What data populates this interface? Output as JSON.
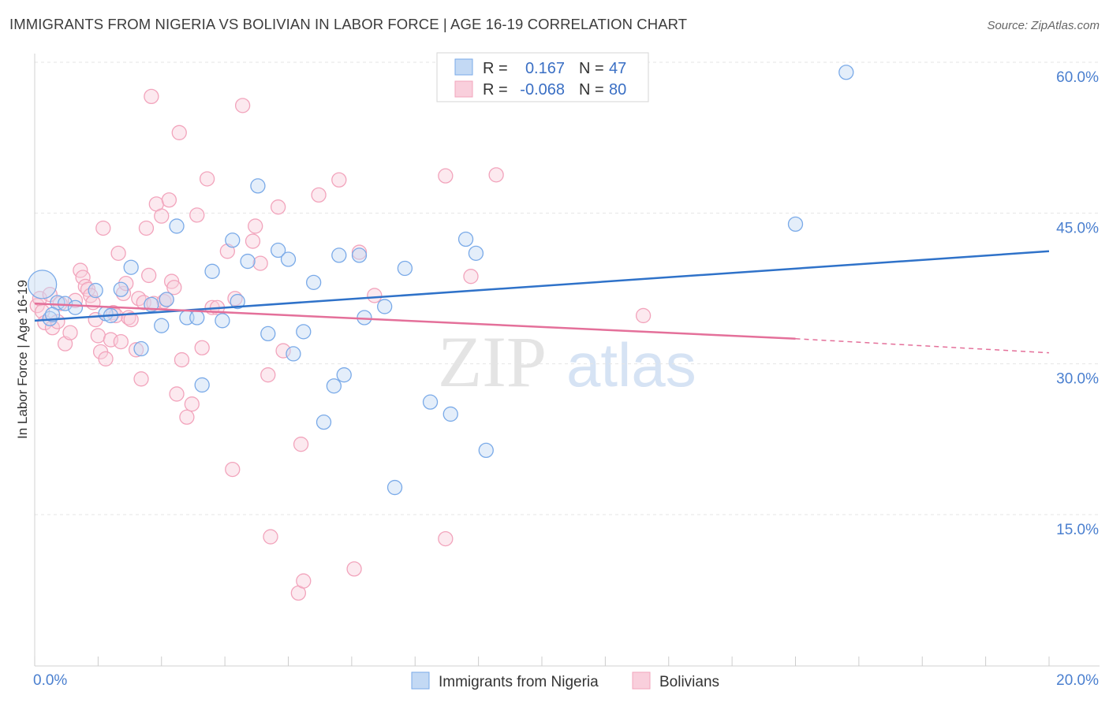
{
  "header": {
    "title": "IMMIGRANTS FROM NIGERIA VS BOLIVIAN IN LABOR FORCE | AGE 16-19 CORRELATION CHART",
    "source": "Source: ZipAtlas.com"
  },
  "watermark": {
    "zip": "ZIP",
    "atlas": "atlas"
  },
  "legend": {
    "rows": [
      {
        "r_label": "R =",
        "r_value": "0.167",
        "n_label": "N =",
        "n_value": "47"
      },
      {
        "r_label": "R =",
        "r_value": "-0.068",
        "n_label": "N =",
        "n_value": "80"
      }
    ]
  },
  "chart_data": {
    "type": "scatter",
    "title": "IMMIGRANTS FROM NIGERIA VS BOLIVIAN IN LABOR FORCE | AGE 16-19 CORRELATION CHART",
    "xlabel": "",
    "ylabel": "In Labor Force | Age 16-19",
    "xlim": [
      0,
      20
    ],
    "ylim": [
      0,
      62
    ],
    "x_tick_labels": [
      "0.0%",
      "20.0%"
    ],
    "y_ticks": [
      15,
      30,
      45,
      60
    ],
    "y_tick_labels": [
      "15.0%",
      "30.0%",
      "45.0%",
      "60.0%"
    ],
    "grid": true,
    "legend_position": "top-center",
    "colors": {
      "nigeria": "#7aaae8",
      "bolivians": "#f2a4bc",
      "nigeria_line": "#2f72c9",
      "bolivians_line": "#e4709a"
    },
    "series": [
      {
        "name": "Immigrants from Nigeria",
        "r": 0.167,
        "n": 47,
        "trend": {
          "x0": 0,
          "y0": 34.3,
          "x1": 20,
          "y1": 41.2
        },
        "points": [
          [
            0.15,
            37.9
          ],
          [
            0.3,
            34.5
          ],
          [
            0.45,
            36.1
          ],
          [
            0.6,
            36.0
          ],
          [
            0.8,
            35.6
          ],
          [
            1.2,
            37.3
          ],
          [
            1.4,
            35.0
          ],
          [
            1.5,
            34.8
          ],
          [
            1.7,
            37.4
          ],
          [
            1.9,
            39.6
          ],
          [
            2.1,
            31.5
          ],
          [
            2.3,
            35.9
          ],
          [
            2.5,
            33.8
          ],
          [
            2.6,
            36.4
          ],
          [
            2.8,
            43.7
          ],
          [
            3.0,
            34.6
          ],
          [
            3.2,
            34.6
          ],
          [
            3.3,
            27.9
          ],
          [
            3.5,
            39.2
          ],
          [
            3.7,
            34.3
          ],
          [
            3.9,
            42.3
          ],
          [
            4.0,
            36.2
          ],
          [
            4.2,
            40.2
          ],
          [
            4.4,
            47.7
          ],
          [
            4.6,
            33.0
          ],
          [
            4.8,
            41.3
          ],
          [
            5.0,
            40.4
          ],
          [
            5.1,
            31.0
          ],
          [
            5.3,
            33.2
          ],
          [
            5.5,
            38.1
          ],
          [
            5.7,
            24.2
          ],
          [
            5.9,
            27.8
          ],
          [
            6.0,
            40.8
          ],
          [
            6.1,
            28.9
          ],
          [
            6.4,
            40.8
          ],
          [
            6.5,
            34.6
          ],
          [
            6.9,
            35.7
          ],
          [
            7.1,
            17.7
          ],
          [
            7.3,
            39.5
          ],
          [
            7.8,
            26.2
          ],
          [
            8.2,
            25.0
          ],
          [
            8.5,
            42.4
          ],
          [
            8.7,
            41.0
          ],
          [
            8.9,
            21.4
          ],
          [
            15.0,
            43.9
          ],
          [
            16.0,
            59.0
          ],
          [
            0.35,
            34.9
          ]
        ]
      },
      {
        "name": "Bolivians",
        "r": -0.068,
        "n": 80,
        "trend": {
          "x0": 0,
          "y0": 36.0,
          "x1": 15.0,
          "y1": 32.5,
          "dash_x1": 20,
          "dash_y1": 31.1
        },
        "points": [
          [
            0.05,
            35.8
          ],
          [
            0.1,
            36.5
          ],
          [
            0.15,
            35.2
          ],
          [
            0.2,
            34.1
          ],
          [
            0.3,
            36.9
          ],
          [
            0.35,
            33.6
          ],
          [
            0.45,
            34.2
          ],
          [
            0.5,
            36.0
          ],
          [
            0.6,
            32.0
          ],
          [
            0.7,
            33.1
          ],
          [
            0.8,
            36.3
          ],
          [
            0.9,
            39.3
          ],
          [
            0.95,
            38.6
          ],
          [
            1.0,
            37.7
          ],
          [
            1.05,
            37.4
          ],
          [
            1.1,
            36.8
          ],
          [
            1.15,
            36.1
          ],
          [
            1.2,
            34.4
          ],
          [
            1.25,
            32.8
          ],
          [
            1.3,
            31.2
          ],
          [
            1.35,
            43.5
          ],
          [
            1.4,
            30.5
          ],
          [
            1.5,
            32.4
          ],
          [
            1.55,
            35.1
          ],
          [
            1.6,
            34.8
          ],
          [
            1.65,
            41.0
          ],
          [
            1.7,
            32.2
          ],
          [
            1.75,
            37.0
          ],
          [
            1.8,
            38.0
          ],
          [
            1.85,
            34.6
          ],
          [
            1.9,
            34.4
          ],
          [
            2.0,
            31.4
          ],
          [
            2.05,
            36.5
          ],
          [
            2.1,
            28.5
          ],
          [
            2.15,
            36.1
          ],
          [
            2.2,
            43.5
          ],
          [
            2.25,
            38.8
          ],
          [
            2.3,
            56.6
          ],
          [
            2.35,
            36.0
          ],
          [
            2.4,
            45.9
          ],
          [
            2.5,
            44.7
          ],
          [
            2.55,
            36.2
          ],
          [
            2.6,
            36.4
          ],
          [
            2.65,
            46.3
          ],
          [
            2.7,
            38.2
          ],
          [
            2.75,
            37.6
          ],
          [
            2.8,
            27.0
          ],
          [
            2.85,
            53.0
          ],
          [
            2.9,
            30.4
          ],
          [
            3.0,
            24.7
          ],
          [
            3.1,
            26.0
          ],
          [
            3.2,
            44.8
          ],
          [
            3.3,
            31.6
          ],
          [
            3.4,
            48.4
          ],
          [
            3.5,
            35.6
          ],
          [
            3.6,
            35.6
          ],
          [
            3.8,
            41.2
          ],
          [
            3.9,
            19.5
          ],
          [
            3.95,
            36.5
          ],
          [
            4.1,
            55.7
          ],
          [
            4.3,
            42.2
          ],
          [
            4.35,
            43.7
          ],
          [
            4.45,
            40.0
          ],
          [
            4.6,
            28.9
          ],
          [
            4.65,
            12.8
          ],
          [
            4.8,
            45.6
          ],
          [
            4.9,
            31.3
          ],
          [
            5.2,
            7.2
          ],
          [
            5.25,
            22.0
          ],
          [
            5.3,
            8.4
          ],
          [
            5.6,
            46.8
          ],
          [
            6.0,
            48.3
          ],
          [
            6.3,
            9.6
          ],
          [
            6.4,
            41.1
          ],
          [
            6.7,
            36.8
          ],
          [
            8.1,
            12.6
          ],
          [
            8.1,
            48.7
          ],
          [
            8.6,
            38.7
          ],
          [
            9.1,
            48.8
          ],
          [
            12.0,
            34.8
          ]
        ]
      }
    ]
  },
  "bottom_legend": {
    "items": [
      {
        "label": "Immigrants from Nigeria"
      },
      {
        "label": "Bolivians"
      }
    ]
  }
}
